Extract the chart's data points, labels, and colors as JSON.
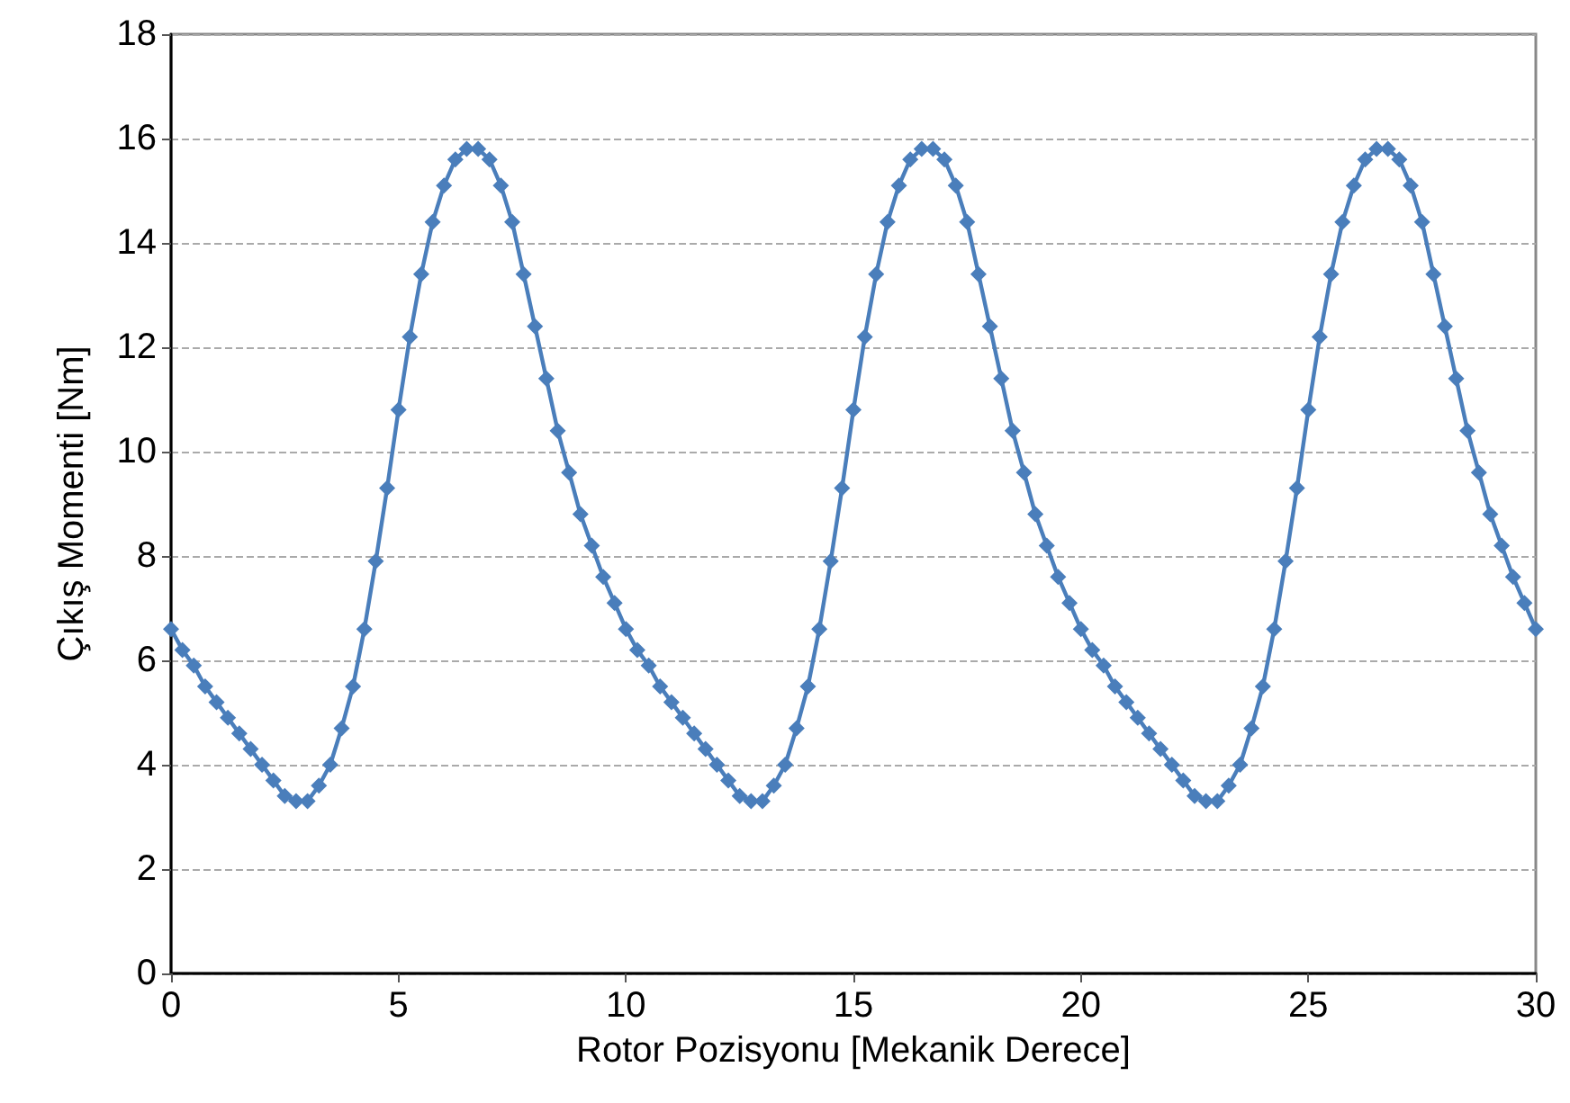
{
  "chart_data": {
    "type": "line",
    "xlabel": "Rotor Pozisyonu [Mekanik Derece]",
    "ylabel": "Çıkış Momenti [Nm]",
    "x": [
      0,
      0.25,
      0.5,
      0.75,
      1,
      1.25,
      1.5,
      1.75,
      2,
      2.25,
      2.5,
      2.75,
      3,
      3.25,
      3.5,
      3.75,
      4,
      4.25,
      4.5,
      4.75,
      5,
      5.25,
      5.5,
      5.75,
      6,
      6.25,
      6.5,
      6.75,
      7,
      7.25,
      7.5,
      7.75,
      8,
      8.25,
      8.5,
      8.75,
      9,
      9.25,
      9.5,
      9.75,
      10,
      10.25,
      10.5,
      10.75,
      11,
      11.25,
      11.5,
      11.75,
      12,
      12.25,
      12.5,
      12.75,
      13,
      13.25,
      13.5,
      13.75,
      14,
      14.25,
      14.5,
      14.75,
      15,
      15.25,
      15.5,
      15.75,
      16,
      16.25,
      16.5,
      16.75,
      17,
      17.25,
      17.5,
      17.75,
      18,
      18.25,
      18.5,
      18.75,
      19,
      19.25,
      19.5,
      19.75,
      20,
      20.25,
      20.5,
      20.75,
      21,
      21.25,
      21.5,
      21.75,
      22,
      22.25,
      22.5,
      22.75,
      23,
      23.25,
      23.5,
      23.75,
      24,
      24.25,
      24.5,
      24.75,
      25,
      25.25,
      25.5,
      25.75,
      26,
      26.25,
      26.5,
      26.75,
      27,
      27.25,
      27.5,
      27.75,
      28,
      28.25,
      28.5,
      28.75,
      29,
      29.25,
      29.5,
      29.75,
      30
    ],
    "series": [
      {
        "color": "#4a7ebb",
        "values": [
          6.6,
          6.2,
          5.9,
          5.5,
          5.2,
          4.9,
          4.6,
          4.3,
          4.0,
          3.7,
          3.4,
          3.3,
          3.3,
          3.6,
          4.0,
          4.7,
          5.5,
          6.6,
          7.9,
          9.3,
          10.8,
          12.2,
          13.4,
          14.4,
          15.1,
          15.6,
          15.8,
          15.8,
          15.6,
          15.1,
          14.4,
          13.4,
          12.4,
          11.4,
          10.4,
          9.6,
          8.8,
          8.2,
          7.6,
          7.1,
          6.6,
          6.2,
          5.9,
          5.5,
          5.2,
          4.9,
          4.6,
          4.3,
          4.0,
          3.7,
          3.4,
          3.3,
          3.3,
          3.6,
          4.0,
          4.7,
          5.5,
          6.6,
          7.9,
          9.3,
          10.8,
          12.2,
          13.4,
          14.4,
          15.1,
          15.6,
          15.8,
          15.8,
          15.6,
          15.1,
          14.4,
          13.4,
          12.4,
          11.4,
          10.4,
          9.6,
          8.8,
          8.2,
          7.6,
          7.1,
          6.6,
          6.2,
          5.9,
          5.5,
          5.2,
          4.9,
          4.6,
          4.3,
          4.0,
          3.7,
          3.4,
          3.3,
          3.3,
          3.6,
          4.0,
          4.7,
          5.5,
          6.6,
          7.9,
          9.3,
          10.8,
          12.2,
          13.4,
          14.4,
          15.1,
          15.6,
          15.8,
          15.8,
          15.6,
          15.1,
          14.4,
          13.4,
          12.4,
          11.4,
          10.4,
          9.6,
          8.8,
          8.2,
          7.6,
          7.1,
          6.6
        ]
      }
    ],
    "xlim": [
      0,
      30
    ],
    "xticks": [
      0,
      5,
      10,
      15,
      20,
      25,
      30
    ],
    "ylim": [
      0,
      18
    ],
    "yticks": [
      0,
      2,
      4,
      6,
      8,
      10,
      12,
      14,
      16,
      18
    ],
    "grid": "y",
    "marker": "diamond",
    "line_style": "solid"
  }
}
